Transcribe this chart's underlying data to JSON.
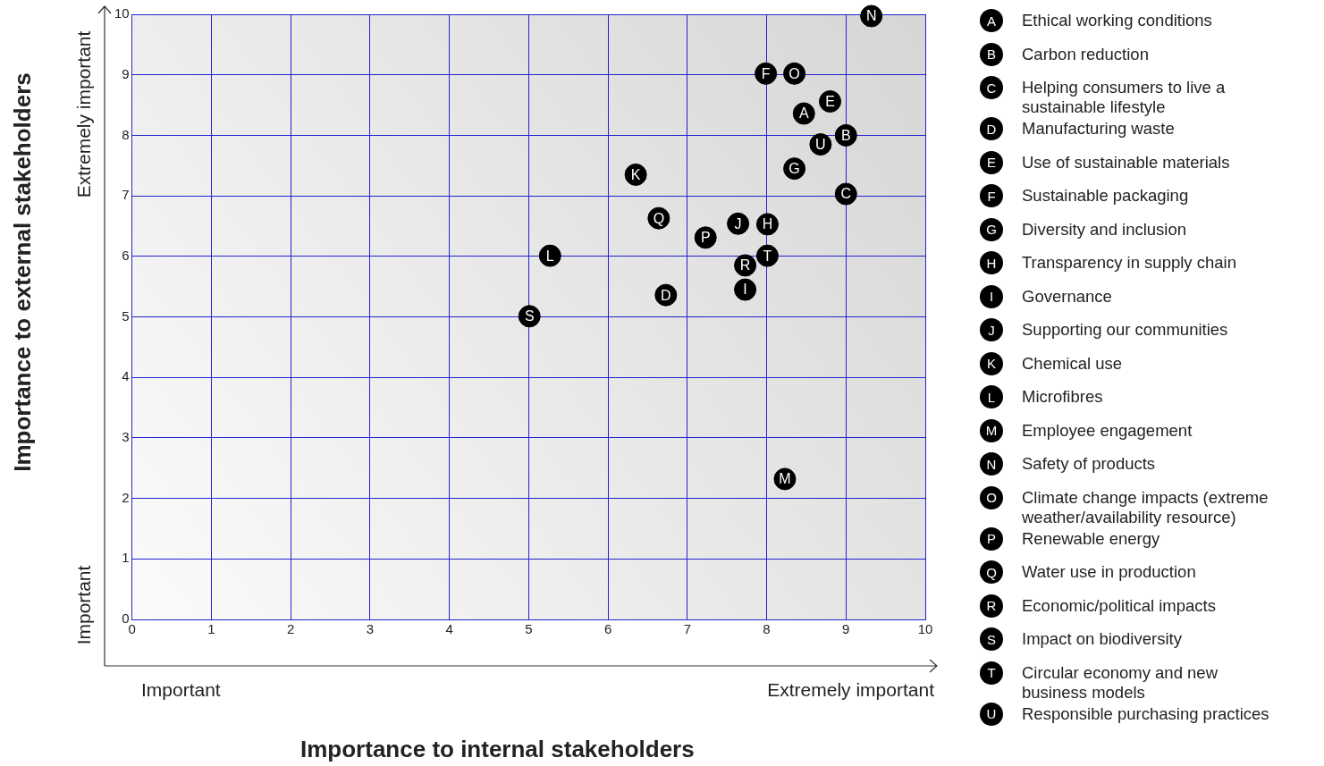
{
  "chart_data": {
    "type": "scatter",
    "xlabel": "Importance to internal stakeholders",
    "ylabel": "Importance to external stakeholders",
    "annotations": [
      "Extremely important",
      "Important",
      "Important",
      "Extremely important"
    ],
    "xlim": [
      0,
      10
    ],
    "ylim": [
      0,
      10
    ],
    "xticks": [
      0,
      1,
      2,
      3,
      4,
      5,
      6,
      7,
      8,
      9,
      10
    ],
    "yticks": [
      0,
      1,
      2,
      3,
      4,
      5,
      6,
      7,
      8,
      9,
      10
    ],
    "grid": true,
    "legend": "right",
    "marker": "circle",
    "series": [
      {
        "name": "Ethical working conditions",
        "color": "#000000",
        "x": [
          8.47
        ],
        "values": [
          8.36
        ],
        "value_labels": [
          "A"
        ]
      },
      {
        "name": "Carbon reduction",
        "color": "#000000",
        "x": [
          9.0
        ],
        "values": [
          8.0
        ],
        "value_labels": [
          "B"
        ]
      },
      {
        "name": "Helping consumers to live a sustainable lifestyle",
        "color": "#000000",
        "x": [
          9.0
        ],
        "values": [
          7.03
        ],
        "value_labels": [
          "C"
        ]
      },
      {
        "name": "Manufacturing waste",
        "color": "#000000",
        "x": [
          6.73
        ],
        "values": [
          5.36
        ],
        "value_labels": [
          "D"
        ]
      },
      {
        "name": "Use of sustainable materials",
        "color": "#000000",
        "x": [
          8.8
        ],
        "values": [
          8.56
        ],
        "value_labels": [
          "E"
        ]
      },
      {
        "name": "Sustainable packaging",
        "color": "#000000",
        "x": [
          7.99
        ],
        "values": [
          9.02
        ],
        "value_labels": [
          "F"
        ]
      },
      {
        "name": "Diversity and inclusion",
        "color": "#000000",
        "x": [
          8.35
        ],
        "values": [
          7.45
        ],
        "value_labels": [
          "G"
        ]
      },
      {
        "name": "Transparency in supply chain",
        "color": "#000000",
        "x": [
          8.01
        ],
        "values": [
          6.53
        ],
        "value_labels": [
          "H"
        ]
      },
      {
        "name": "Governance",
        "color": "#000000",
        "x": [
          7.73
        ],
        "values": [
          5.45
        ],
        "value_labels": [
          "I"
        ]
      },
      {
        "name": "Supporting our communities",
        "color": "#000000",
        "x": [
          7.64
        ],
        "values": [
          6.54
        ],
        "value_labels": [
          "J"
        ]
      },
      {
        "name": "Chemical use",
        "color": "#000000",
        "x": [
          6.35
        ],
        "values": [
          7.35
        ],
        "value_labels": [
          "K"
        ]
      },
      {
        "name": "Microfibres",
        "color": "#000000",
        "x": [
          5.27
        ],
        "values": [
          6.01
        ],
        "value_labels": [
          "L"
        ]
      },
      {
        "name": "Employee engagement",
        "color": "#000000",
        "x": [
          8.23
        ],
        "values": [
          2.32
        ],
        "value_labels": [
          "M"
        ]
      },
      {
        "name": "Safety of products",
        "color": "#000000",
        "x": [
          9.32
        ],
        "values": [
          9.97
        ],
        "value_labels": [
          "N"
        ]
      },
      {
        "name": "Climate change impacts (extreme weather/availability resource)",
        "color": "#000000",
        "x": [
          8.35
        ],
        "values": [
          9.02
        ],
        "value_labels": [
          "O"
        ]
      },
      {
        "name": "Renewable energy",
        "color": "#000000",
        "x": [
          7.23
        ],
        "values": [
          6.31
        ],
        "value_labels": [
          "P"
        ]
      },
      {
        "name": "Water use in production",
        "color": "#000000",
        "x": [
          6.64
        ],
        "values": [
          6.63
        ],
        "value_labels": [
          "Q"
        ]
      },
      {
        "name": "Economic/political impacts",
        "color": "#000000",
        "x": [
          7.73
        ],
        "values": [
          5.85
        ],
        "value_labels": [
          "R"
        ]
      },
      {
        "name": "Impact on biodiversity",
        "color": "#000000",
        "x": [
          5.01
        ],
        "values": [
          5.01
        ],
        "value_labels": [
          "S"
        ]
      },
      {
        "name": "Circular economy and new business models",
        "color": "#000000",
        "x": [
          8.01
        ],
        "values": [
          6.01
        ],
        "value_labels": [
          "T"
        ]
      },
      {
        "name": "Responsible purchasing practices",
        "color": "#000000",
        "x": [
          8.68
        ],
        "values": [
          7.85
        ],
        "value_labels": [
          "U"
        ]
      }
    ]
  }
}
